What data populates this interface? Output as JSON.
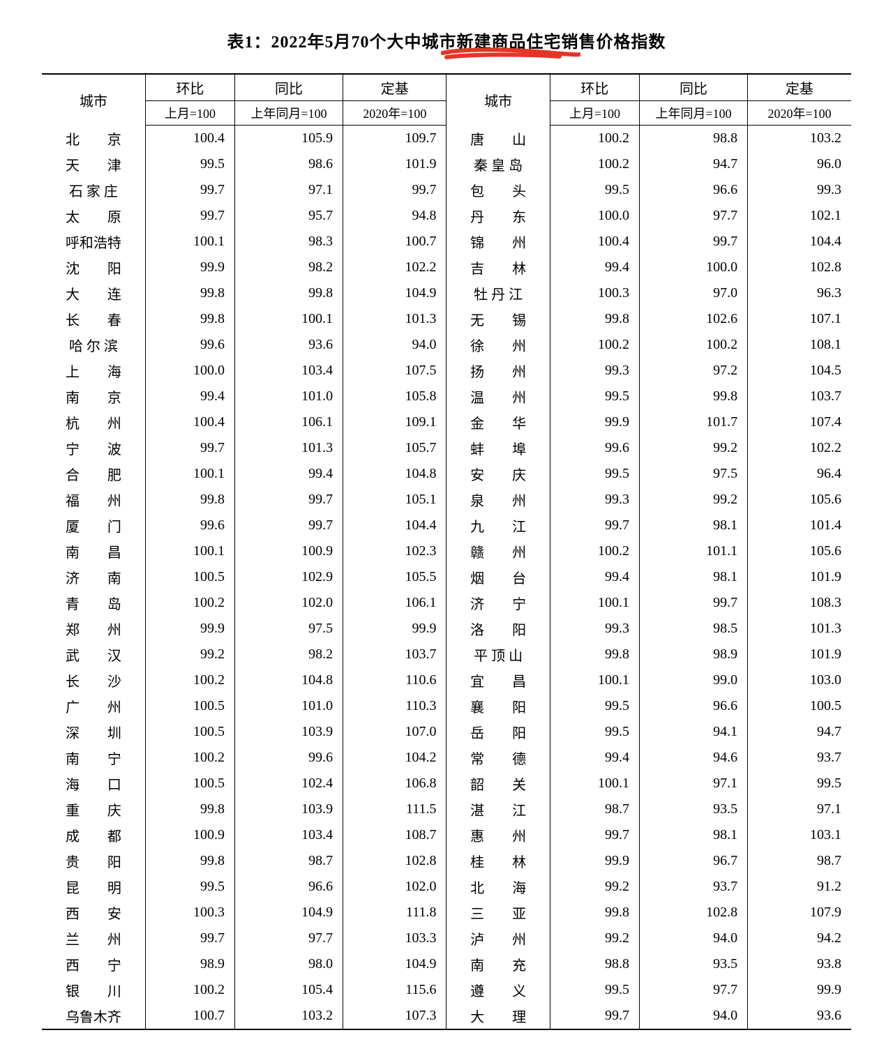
{
  "title": "表1：2022年5月70个大中城市新建商品住宅销售价格指数",
  "annotation": {
    "stroke": "#e53528",
    "width": 6
  },
  "headers": {
    "city": "城市",
    "groups": [
      "环比",
      "同比",
      "定基"
    ],
    "subs": [
      "上月=100",
      "上年同月=100",
      "2020年=100"
    ]
  },
  "left": [
    {
      "city": "北　　京",
      "v": [
        100.4,
        105.9,
        109.7
      ]
    },
    {
      "city": "天　　津",
      "v": [
        99.5,
        98.6,
        101.9
      ]
    },
    {
      "city": "石 家 庄",
      "v": [
        99.7,
        97.1,
        99.7
      ]
    },
    {
      "city": "太　　原",
      "v": [
        99.7,
        95.7,
        94.8
      ]
    },
    {
      "city": "呼和浩特",
      "v": [
        100.1,
        98.3,
        100.7
      ]
    },
    {
      "city": "沈　　阳",
      "v": [
        99.9,
        98.2,
        102.2
      ]
    },
    {
      "city": "大　　连",
      "v": [
        99.8,
        99.8,
        104.9
      ]
    },
    {
      "city": "长　　春",
      "v": [
        99.8,
        100.1,
        101.3
      ]
    },
    {
      "city": "哈 尔 滨",
      "v": [
        99.6,
        93.6,
        94.0
      ]
    },
    {
      "city": "上　　海",
      "v": [
        100.0,
        103.4,
        107.5
      ]
    },
    {
      "city": "南　　京",
      "v": [
        99.4,
        101.0,
        105.8
      ]
    },
    {
      "city": "杭　　州",
      "v": [
        100.4,
        106.1,
        109.1
      ]
    },
    {
      "city": "宁　　波",
      "v": [
        99.7,
        101.3,
        105.7
      ]
    },
    {
      "city": "合　　肥",
      "v": [
        100.1,
        99.4,
        104.8
      ]
    },
    {
      "city": "福　　州",
      "v": [
        99.8,
        99.7,
        105.1
      ]
    },
    {
      "city": "厦　　门",
      "v": [
        99.6,
        99.7,
        104.4
      ]
    },
    {
      "city": "南　　昌",
      "v": [
        100.1,
        100.9,
        102.3
      ]
    },
    {
      "city": "济　　南",
      "v": [
        100.5,
        102.9,
        105.5
      ]
    },
    {
      "city": "青　　岛",
      "v": [
        100.2,
        102.0,
        106.1
      ]
    },
    {
      "city": "郑　　州",
      "v": [
        99.9,
        97.5,
        99.9
      ]
    },
    {
      "city": "武　　汉",
      "v": [
        99.2,
        98.2,
        103.7
      ]
    },
    {
      "city": "长　　沙",
      "v": [
        100.2,
        104.8,
        110.6
      ]
    },
    {
      "city": "广　　州",
      "v": [
        100.5,
        101.0,
        110.3
      ]
    },
    {
      "city": "深　　圳",
      "v": [
        100.5,
        103.9,
        107.0
      ]
    },
    {
      "city": "南　　宁",
      "v": [
        100.2,
        99.6,
        104.2
      ]
    },
    {
      "city": "海　　口",
      "v": [
        100.5,
        102.4,
        106.8
      ]
    },
    {
      "city": "重　　庆",
      "v": [
        99.8,
        103.9,
        111.5
      ]
    },
    {
      "city": "成　　都",
      "v": [
        100.9,
        103.4,
        108.7
      ]
    },
    {
      "city": "贵　　阳",
      "v": [
        99.8,
        98.7,
        102.8
      ]
    },
    {
      "city": "昆　　明",
      "v": [
        99.5,
        96.6,
        102.0
      ]
    },
    {
      "city": "西　　安",
      "v": [
        100.3,
        104.9,
        111.8
      ]
    },
    {
      "city": "兰　　州",
      "v": [
        99.7,
        97.7,
        103.3
      ]
    },
    {
      "city": "西　　宁",
      "v": [
        98.9,
        98.0,
        104.9
      ]
    },
    {
      "city": "银　　川",
      "v": [
        100.2,
        105.4,
        115.6
      ]
    },
    {
      "city": "乌鲁木齐",
      "v": [
        100.7,
        103.2,
        107.3
      ]
    }
  ],
  "right": [
    {
      "city": "唐　　山",
      "v": [
        100.2,
        98.8,
        103.2
      ]
    },
    {
      "city": "秦 皇 岛",
      "v": [
        100.2,
        94.7,
        96.0
      ]
    },
    {
      "city": "包　　头",
      "v": [
        99.5,
        96.6,
        99.3
      ]
    },
    {
      "city": "丹　　东",
      "v": [
        100.0,
        97.7,
        102.1
      ]
    },
    {
      "city": "锦　　州",
      "v": [
        100.4,
        99.7,
        104.4
      ]
    },
    {
      "city": "吉　　林",
      "v": [
        99.4,
        100.0,
        102.8
      ]
    },
    {
      "city": "牡 丹 江",
      "v": [
        100.3,
        97.0,
        96.3
      ]
    },
    {
      "city": "无　　锡",
      "v": [
        99.8,
        102.6,
        107.1
      ]
    },
    {
      "city": "徐　　州",
      "v": [
        100.2,
        100.2,
        108.1
      ]
    },
    {
      "city": "扬　　州",
      "v": [
        99.3,
        97.2,
        104.5
      ]
    },
    {
      "city": "温　　州",
      "v": [
        99.5,
        99.8,
        103.7
      ]
    },
    {
      "city": "金　　华",
      "v": [
        99.9,
        101.7,
        107.4
      ]
    },
    {
      "city": "蚌　　埠",
      "v": [
        99.6,
        99.2,
        102.2
      ]
    },
    {
      "city": "安　　庆",
      "v": [
        99.5,
        97.5,
        96.4
      ]
    },
    {
      "city": "泉　　州",
      "v": [
        99.3,
        99.2,
        105.6
      ]
    },
    {
      "city": "九　　江",
      "v": [
        99.7,
        98.1,
        101.4
      ]
    },
    {
      "city": "赣　　州",
      "v": [
        100.2,
        101.1,
        105.6
      ]
    },
    {
      "city": "烟　　台",
      "v": [
        99.4,
        98.1,
        101.9
      ]
    },
    {
      "city": "济　　宁",
      "v": [
        100.1,
        99.7,
        108.3
      ]
    },
    {
      "city": "洛　　阳",
      "v": [
        99.3,
        98.5,
        101.3
      ]
    },
    {
      "city": "平 顶 山",
      "v": [
        99.8,
        98.9,
        101.9
      ]
    },
    {
      "city": "宜　　昌",
      "v": [
        100.1,
        99.0,
        103.0
      ]
    },
    {
      "city": "襄　　阳",
      "v": [
        99.5,
        96.6,
        100.5
      ]
    },
    {
      "city": "岳　　阳",
      "v": [
        99.5,
        94.1,
        94.7
      ]
    },
    {
      "city": "常　　德",
      "v": [
        99.4,
        94.6,
        93.7
      ]
    },
    {
      "city": "韶　　关",
      "v": [
        100.1,
        97.1,
        99.5
      ]
    },
    {
      "city": "湛　　江",
      "v": [
        98.7,
        93.5,
        97.1
      ]
    },
    {
      "city": "惠　　州",
      "v": [
        99.7,
        98.1,
        103.1
      ]
    },
    {
      "city": "桂　　林",
      "v": [
        99.9,
        96.7,
        98.7
      ]
    },
    {
      "city": "北　　海",
      "v": [
        99.2,
        93.7,
        91.2
      ]
    },
    {
      "city": "三　　亚",
      "v": [
        99.8,
        102.8,
        107.9
      ]
    },
    {
      "city": "泸　　州",
      "v": [
        99.2,
        94.0,
        94.2
      ]
    },
    {
      "city": "南　　充",
      "v": [
        98.8,
        93.5,
        93.8
      ]
    },
    {
      "city": "遵　　义",
      "v": [
        99.5,
        97.7,
        99.9
      ]
    },
    {
      "city": "大　　理",
      "v": [
        99.7,
        94.0,
        93.6
      ]
    }
  ]
}
